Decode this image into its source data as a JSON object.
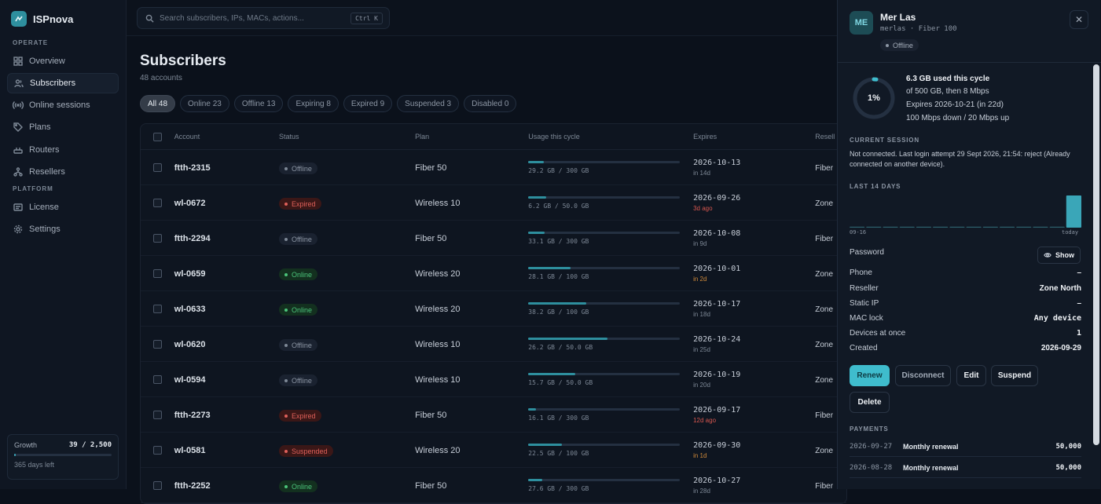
{
  "brand": {
    "name": "ISPnova"
  },
  "sidebar": {
    "sections": {
      "operate": "OPERATE",
      "platform": "PLATFORM"
    },
    "items": [
      {
        "label": "Overview",
        "icon": "grid-icon"
      },
      {
        "label": "Subscribers",
        "icon": "users-icon"
      },
      {
        "label": "Online sessions",
        "icon": "signal-icon"
      },
      {
        "label": "Plans",
        "icon": "tag-icon"
      },
      {
        "label": "Routers",
        "icon": "router-icon"
      },
      {
        "label": "Resellers",
        "icon": "network-icon"
      },
      {
        "label": "License",
        "icon": "card-icon"
      },
      {
        "label": "Settings",
        "icon": "gear-icon"
      }
    ],
    "growth": {
      "label": "Growth",
      "value": "39 / 2,500",
      "fill_fraction": 0.016,
      "days_left": "365 days left"
    }
  },
  "search": {
    "placeholder": "Search subscribers, IPs, MACs, actions...",
    "shortcut": "Ctrl K"
  },
  "page": {
    "title": "Subscribers",
    "subtitle": "48 accounts"
  },
  "filters": [
    "All 48",
    "Online 23",
    "Offline 13",
    "Expiring 8",
    "Expired 9",
    "Suspended 3",
    "Disabled 0"
  ],
  "table": {
    "headers": [
      "Account",
      "Status",
      "Plan",
      "Usage this cycle",
      "Expires",
      "Resell"
    ],
    "rows": [
      {
        "account": "ftth-2315",
        "status": "Offline",
        "plan": "Fiber 50",
        "usage_text": "29.2 GB / 300 GB",
        "usage": 0.1,
        "expires": "2026-10-13",
        "rel": "in 14d",
        "rel_kind": "",
        "reseller": "Fiber"
      },
      {
        "account": "wl-0672",
        "status": "Expired",
        "plan": "Wireless 10",
        "usage_text": "6.2 GB / 50.0 GB",
        "usage": 0.12,
        "expires": "2026-09-26",
        "rel": "3d ago",
        "rel_kind": "bad",
        "reseller": "Zone"
      },
      {
        "account": "ftth-2294",
        "status": "Offline",
        "plan": "Fiber 50",
        "usage_text": "33.1 GB / 300 GB",
        "usage": 0.11,
        "expires": "2026-10-08",
        "rel": "in 9d",
        "rel_kind": "",
        "reseller": "Fiber"
      },
      {
        "account": "wl-0659",
        "status": "Online",
        "plan": "Wireless 20",
        "usage_text": "28.1 GB / 100 GB",
        "usage": 0.28,
        "expires": "2026-10-01",
        "rel": "in 2d",
        "rel_kind": "warn",
        "reseller": "Zone"
      },
      {
        "account": "wl-0633",
        "status": "Online",
        "plan": "Wireless 20",
        "usage_text": "38.2 GB / 100 GB",
        "usage": 0.38,
        "expires": "2026-10-17",
        "rel": "in 18d",
        "rel_kind": "",
        "reseller": "Zone"
      },
      {
        "account": "wl-0620",
        "status": "Offline",
        "plan": "Wireless 10",
        "usage_text": "26.2 GB / 50.0 GB",
        "usage": 0.52,
        "expires": "2026-10-24",
        "rel": "in 25d",
        "rel_kind": "",
        "reseller": "Zone"
      },
      {
        "account": "wl-0594",
        "status": "Offline",
        "plan": "Wireless 10",
        "usage_text": "15.7 GB / 50.0 GB",
        "usage": 0.31,
        "expires": "2026-10-19",
        "rel": "in 20d",
        "rel_kind": "",
        "reseller": "Zone"
      },
      {
        "account": "ftth-2273",
        "status": "Expired",
        "plan": "Fiber 50",
        "usage_text": "16.1 GB / 300 GB",
        "usage": 0.05,
        "expires": "2026-09-17",
        "rel": "12d ago",
        "rel_kind": "bad",
        "reseller": "Fiber"
      },
      {
        "account": "wl-0581",
        "status": "Suspended",
        "plan": "Wireless 20",
        "usage_text": "22.5 GB / 100 GB",
        "usage": 0.22,
        "expires": "2026-09-30",
        "rel": "in 1d",
        "rel_kind": "warn",
        "reseller": "Zone"
      },
      {
        "account": "ftth-2252",
        "status": "Online",
        "plan": "Fiber 50",
        "usage_text": "27.6 GB / 300 GB",
        "usage": 0.09,
        "expires": "2026-10-27",
        "rel": "in 28d",
        "rel_kind": "",
        "reseller": "Fiber"
      }
    ]
  },
  "panel": {
    "initials": "ME",
    "name": "Mer Las",
    "meta": "merlas · Fiber 100",
    "status": "Offline",
    "close": "✕",
    "usage_percent": "1%",
    "usage_fraction": 0.013,
    "usage_line1": "6.3 GB used this cycle",
    "usage_line2": "of 500 GB, then 8 Mbps",
    "usage_line3": "Expires 2026-10-21 (in 22d)",
    "usage_line4": "100 Mbps down / 20 Mbps up",
    "session_heading": "CURRENT SESSION",
    "session_text": "Not connected. Last login attempt 29 Sept 2026, 21:54: reject (Already connected on another device).",
    "days_heading": "LAST 14 DAYS",
    "days_start": "09-16",
    "days_end": "today",
    "days_values": [
      0.05,
      0.05,
      0.05,
      0.05,
      0.05,
      0.05,
      0.05,
      0.05,
      0.05,
      0.05,
      0.05,
      0.05,
      0.05,
      6.3
    ],
    "password_label": "Password",
    "show_label": "Show",
    "fields": [
      {
        "k": "Phone",
        "v": "–"
      },
      {
        "k": "Reseller",
        "v": "Zone North"
      },
      {
        "k": "Static IP",
        "v": "–"
      },
      {
        "k": "MAC lock",
        "v": "Any device"
      },
      {
        "k": "Devices at once",
        "v": "1"
      },
      {
        "k": "Created",
        "v": "2026-09-29"
      }
    ],
    "actions": {
      "renew": "Renew",
      "disconnect": "Disconnect",
      "edit": "Edit",
      "suspend": "Suspend",
      "delete": "Delete"
    },
    "payments_heading": "PAYMENTS",
    "payments": [
      {
        "date": "2026-09-27",
        "label": "Monthly renewal",
        "amount": "50,000"
      },
      {
        "date": "2026-08-28",
        "label": "Monthly renewal",
        "amount": "50,000"
      }
    ]
  },
  "colors": {
    "accent": "#3fbccd",
    "bar": "#2e8f9e",
    "online": "#4bc47a",
    "expired": "#e0605a"
  }
}
